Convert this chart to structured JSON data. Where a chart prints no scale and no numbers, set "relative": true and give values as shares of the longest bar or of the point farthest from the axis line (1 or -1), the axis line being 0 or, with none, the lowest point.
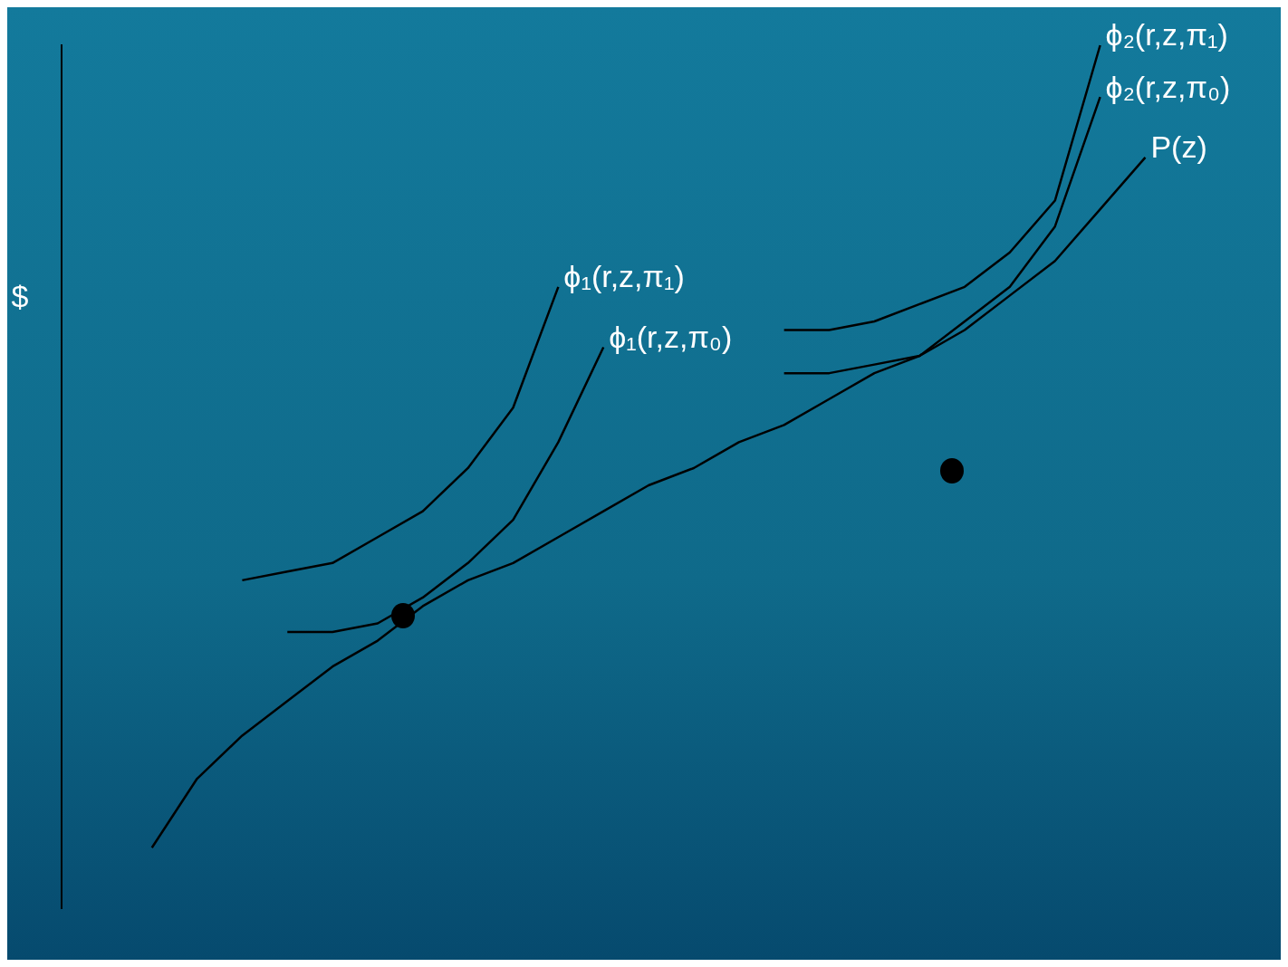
{
  "chart_data": {
    "type": "line",
    "relative": true,
    "ylabel": "$",
    "legend": false,
    "grid": false,
    "categories": [
      null,
      null,
      null,
      null,
      null,
      null,
      null,
      null,
      null,
      null,
      null,
      null,
      null,
      null,
      null,
      null,
      null,
      null,
      null,
      null,
      null,
      null,
      null,
      null,
      null,
      null,
      null,
      null
    ],
    "series": [
      {
        "name": "P(z)",
        "color": "#000000",
        "values": [
          null,
          null,
          0.07,
          0.15,
          0.2,
          0.24,
          0.28,
          0.31,
          0.35,
          0.38,
          0.4,
          0.43,
          0.46,
          0.49,
          0.51,
          0.54,
          0.56,
          0.59,
          0.62,
          0.64,
          0.67,
          0.71,
          0.75,
          0.81,
          0.87,
          null,
          null,
          null
        ]
      },
      {
        "name": "ϕ₁(r,z,π₁)",
        "color": "#000000",
        "values": [
          null,
          null,
          null,
          null,
          0.38,
          0.39,
          0.4,
          0.43,
          0.46,
          0.51,
          0.58,
          0.72,
          null,
          null,
          null,
          null,
          null,
          null,
          null,
          null,
          null,
          null,
          null,
          null,
          null,
          null,
          null,
          null
        ]
      },
      {
        "name": "ϕ₁(r,z,π₀)",
        "color": "#000000",
        "values": [
          null,
          null,
          null,
          null,
          null,
          0.32,
          0.32,
          0.33,
          0.36,
          0.4,
          0.45,
          0.54,
          0.65,
          null,
          null,
          null,
          null,
          null,
          null,
          null,
          null,
          null,
          null,
          null,
          null,
          null,
          null,
          null
        ]
      },
      {
        "name": "ϕ₂(r,z,π₁)",
        "color": "#000000",
        "values": [
          null,
          null,
          null,
          null,
          null,
          null,
          null,
          null,
          null,
          null,
          null,
          null,
          null,
          null,
          null,
          null,
          0.67,
          0.67,
          0.68,
          0.7,
          0.72,
          0.76,
          0.82,
          1,
          null,
          null,
          null,
          null
        ]
      },
      {
        "name": "ϕ₂(r,z,π₀)",
        "color": "#000000",
        "values": [
          null,
          null,
          null,
          null,
          null,
          null,
          null,
          null,
          null,
          null,
          null,
          null,
          null,
          null,
          null,
          null,
          0.62,
          0.62,
          0.63,
          0.64,
          0.68,
          0.72,
          0.79,
          0.94,
          null,
          null,
          null,
          null
        ]
      }
    ]
  }
}
